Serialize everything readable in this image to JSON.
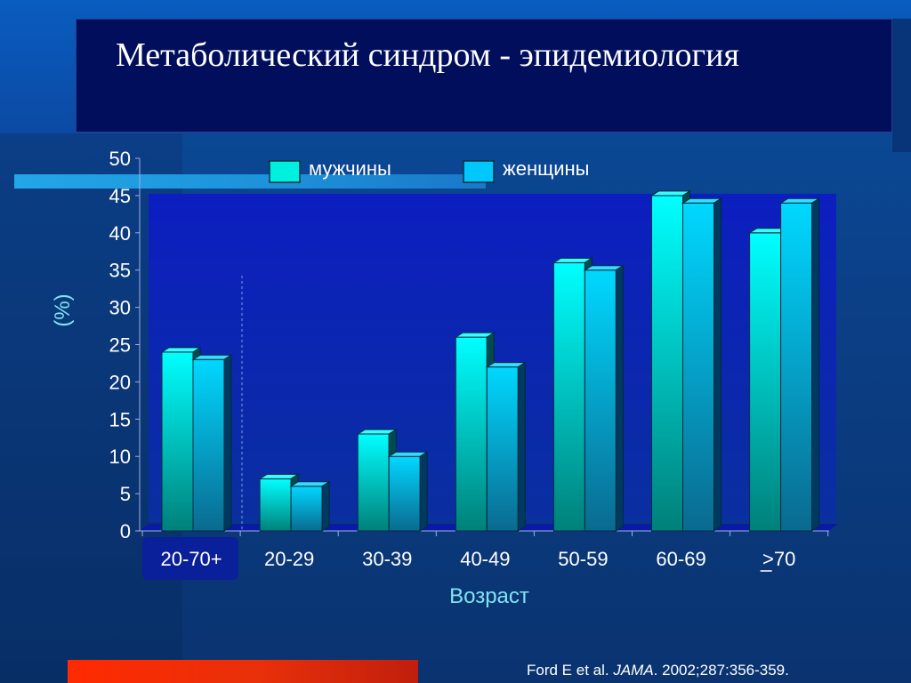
{
  "slide": {
    "title": "Метаболический синдром - эпидемиология",
    "source_authors": "Ford E et al. ",
    "source_journal": "JAMA",
    "source_ref": ". 2002;287:356-359.",
    "colors": {
      "background": "#0b4aa3",
      "title_box": "#000e5c",
      "plot_area": "#0a1fb8",
      "men_series": "#00f0f0",
      "women_series": "#00c8ff",
      "accent_orange": "#ff2a00"
    }
  },
  "chart_data": {
    "type": "bar",
    "title": "",
    "xlabel": "Возраст",
    "ylabel": "(%)",
    "ylim": [
      0,
      50
    ],
    "yticks": [
      0,
      5,
      10,
      15,
      20,
      25,
      30,
      35,
      40,
      45,
      50
    ],
    "categories": [
      "20-70+",
      "20-29",
      "30-39",
      "40-49",
      "50-59",
      "60-69",
      ">70"
    ],
    "highlighted_category": "20-70+",
    "series": [
      {
        "name": "мужчины",
        "values": [
          24,
          7,
          13,
          26,
          36,
          45,
          40
        ]
      },
      {
        "name": "женщины",
        "values": [
          23,
          6,
          10,
          22,
          35,
          44,
          44
        ]
      }
    ],
    "legend_position": "top",
    "grid": false,
    "style": "3d-bars"
  }
}
